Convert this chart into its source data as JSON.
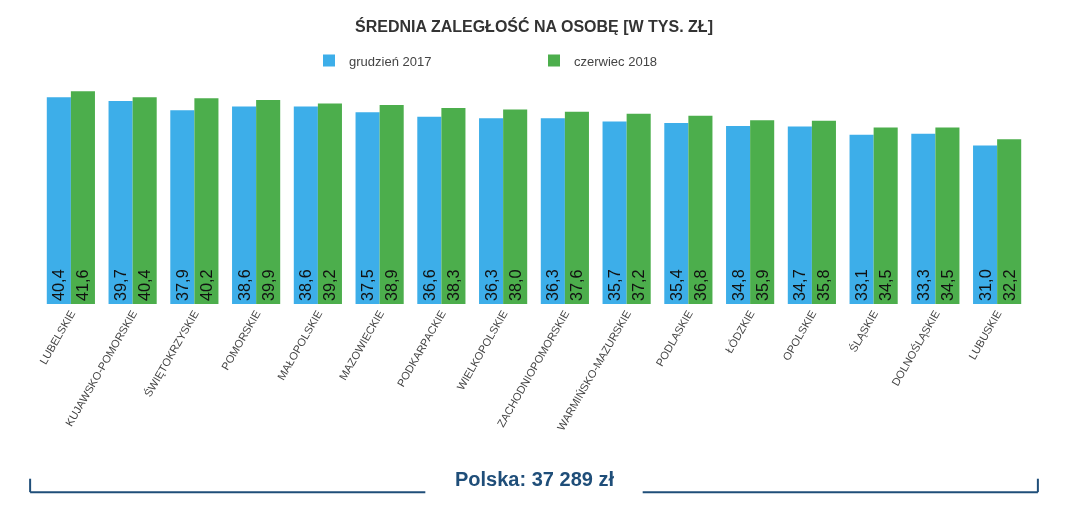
{
  "chart_data": {
    "type": "bar",
    "title": "ŚREDNIA ZALEGŁOŚĆ NA OSOBĘ [W TYS. ZŁ]",
    "categories": [
      "LUBELSKIE",
      "KUJAWSKO-POMORSKIE",
      "ŚWIĘTOKRZYSKIE",
      "POMORSKIE",
      "MAŁOPOLSKIE",
      "MAZOWIECKIE",
      "PODKARPACKIE",
      "WIELKOPOLSKIE",
      "ZACHODNIOPOMORSKIE",
      "WARMIŃSKO-MAZURSKIE",
      "PODLASKIE",
      "ŁÓDZKIE",
      "OPOLSKIE",
      "ŚLĄSKIE",
      "DOLNOŚLĄSKIE",
      "LUBUSKIE"
    ],
    "series": [
      {
        "name": "grudzień 2017",
        "color": "#3daee9",
        "values": [
          40.4,
          39.7,
          37.9,
          38.6,
          38.6,
          37.5,
          36.6,
          36.3,
          36.3,
          35.7,
          35.4,
          34.8,
          34.7,
          33.1,
          33.3,
          31.0
        ],
        "value_labels": [
          "40,4",
          "39,7",
          "37,9",
          "38,6",
          "38,6",
          "37,5",
          "36,6",
          "36,3",
          "36,3",
          "35,7",
          "35,4",
          "34,8",
          "34,7",
          "33,1",
          "33,3",
          "31,0"
        ]
      },
      {
        "name": "czerwiec 2018",
        "color": "#4cae4c",
        "values": [
          41.6,
          40.4,
          40.2,
          39.9,
          39.2,
          38.9,
          38.3,
          38.0,
          37.6,
          37.2,
          36.8,
          35.9,
          35.8,
          34.5,
          34.5,
          32.2
        ],
        "value_labels": [
          "41,6",
          "40,4",
          "40,2",
          "39,9",
          "39,2",
          "38,9",
          "38,3",
          "38,0",
          "37,6",
          "37,2",
          "36,8",
          "35,9",
          "35,8",
          "34,5",
          "34,5",
          "32,2"
        ]
      }
    ],
    "legend": "top",
    "annotations": [
      "Polska: 37 289 zł"
    ]
  }
}
